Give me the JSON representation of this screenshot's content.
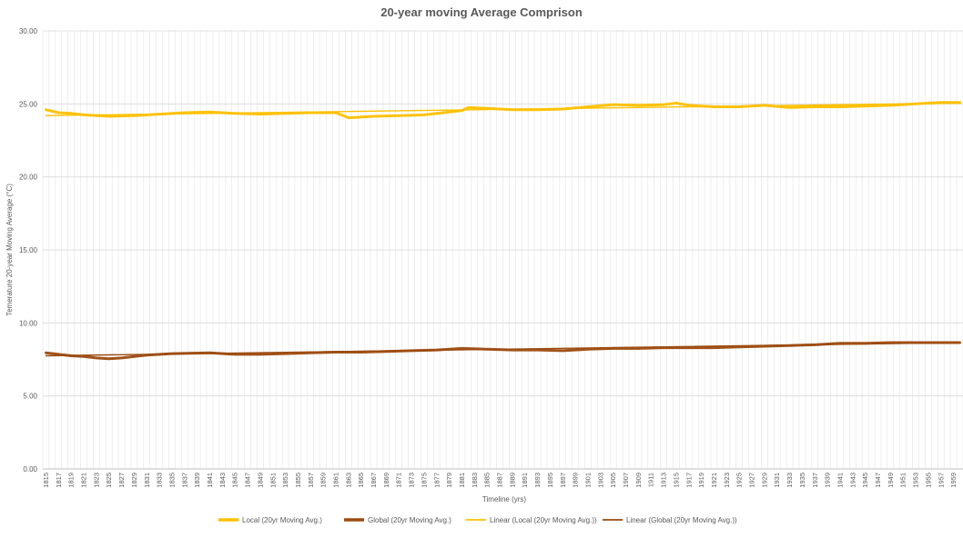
{
  "chart_data": {
    "type": "line",
    "title": "20-year moving Average Comprison",
    "xlabel": "Timeline (yrs)",
    "ylabel": "Temerature 20-year Moving Average (°C)",
    "ylim": [
      0,
      30
    ],
    "y_ticks": [
      "0.00",
      "5.00",
      "10.00",
      "15.00",
      "20.00",
      "25.00",
      "30.00"
    ],
    "x_start": 1815,
    "x_end": 1960,
    "x_tick_labels": [
      "1815",
      "1817",
      "1819",
      "1821",
      "1823",
      "1825",
      "1827",
      "1829",
      "1831",
      "1833",
      "1835",
      "1837",
      "1839",
      "1841",
      "1843",
      "1845",
      "1847",
      "1849",
      "1851",
      "1853",
      "1855",
      "1857",
      "1859",
      "1861",
      "1863",
      "1865",
      "1867",
      "1869",
      "1871",
      "1873",
      "1875",
      "1877",
      "1879",
      "1881",
      "1883",
      "1885",
      "1887",
      "1889",
      "1891",
      "1893",
      "1895",
      "1897",
      "1899",
      "1901",
      "1903",
      "1905",
      "1907",
      "1909",
      "1911",
      "1913",
      "1915",
      "1917",
      "1919",
      "1921",
      "1923",
      "1925",
      "1927",
      "1929",
      "1931",
      "1933",
      "1935",
      "1937",
      "1939",
      "1941",
      "1943",
      "1945",
      "1947",
      "1949",
      "1951",
      "1953",
      "1955",
      "1957",
      "1959"
    ],
    "grid": true,
    "legend_position": "bottom",
    "series": [
      {
        "name": "Local (20yr Moving Avg.)",
        "color": "#FFC000",
        "style": "thick",
        "x": [
          1815,
          1817,
          1819,
          1821,
          1825,
          1829,
          1833,
          1837,
          1841,
          1845,
          1849,
          1853,
          1857,
          1861,
          1863,
          1867,
          1871,
          1875,
          1879,
          1881,
          1882,
          1885,
          1889,
          1893,
          1897,
          1901,
          1905,
          1909,
          1913,
          1915,
          1917,
          1921,
          1925,
          1929,
          1933,
          1937,
          1941,
          1945,
          1949,
          1953,
          1957,
          1960
        ],
        "values": [
          24.6,
          24.4,
          24.35,
          24.25,
          24.15,
          24.2,
          24.3,
          24.4,
          24.45,
          24.35,
          24.3,
          24.35,
          24.4,
          24.4,
          24.05,
          24.15,
          24.2,
          24.25,
          24.45,
          24.55,
          24.75,
          24.7,
          24.6,
          24.6,
          24.65,
          24.8,
          24.95,
          24.9,
          24.95,
          25.05,
          24.9,
          24.8,
          24.8,
          24.9,
          24.75,
          24.8,
          24.8,
          24.85,
          24.9,
          25.0,
          25.1,
          25.1
        ]
      },
      {
        "name": "Global (20yr Moving Avg.)",
        "color": "#9C4A0E",
        "style": "thick",
        "x": [
          1815,
          1817,
          1819,
          1821,
          1823,
          1825,
          1827,
          1829,
          1831,
          1835,
          1841,
          1845,
          1849,
          1853,
          1857,
          1861,
          1865,
          1869,
          1873,
          1877,
          1881,
          1885,
          1889,
          1893,
          1897,
          1901,
          1905,
          1909,
          1913,
          1917,
          1921,
          1925,
          1929,
          1933,
          1937,
          1941,
          1945,
          1949,
          1953,
          1957,
          1960
        ],
        "values": [
          7.95,
          7.85,
          7.75,
          7.7,
          7.6,
          7.55,
          7.6,
          7.7,
          7.8,
          7.9,
          7.95,
          7.85,
          7.85,
          7.9,
          7.95,
          8.0,
          8.0,
          8.05,
          8.1,
          8.15,
          8.25,
          8.2,
          8.15,
          8.15,
          8.1,
          8.2,
          8.25,
          8.25,
          8.3,
          8.3,
          8.3,
          8.35,
          8.4,
          8.45,
          8.5,
          8.6,
          8.6,
          8.65,
          8.65,
          8.65,
          8.65
        ]
      },
      {
        "name": "Linear (Local (20yr Moving Avg.))",
        "color": "#FFC000",
        "style": "thin",
        "x": [
          1815,
          1960
        ],
        "values": [
          24.2,
          25.05
        ]
      },
      {
        "name": "Linear (Global (20yr Moving Avg.))",
        "color": "#9C4A0E",
        "style": "thin",
        "x": [
          1815,
          1960
        ],
        "values": [
          7.75,
          8.65
        ]
      }
    ]
  }
}
